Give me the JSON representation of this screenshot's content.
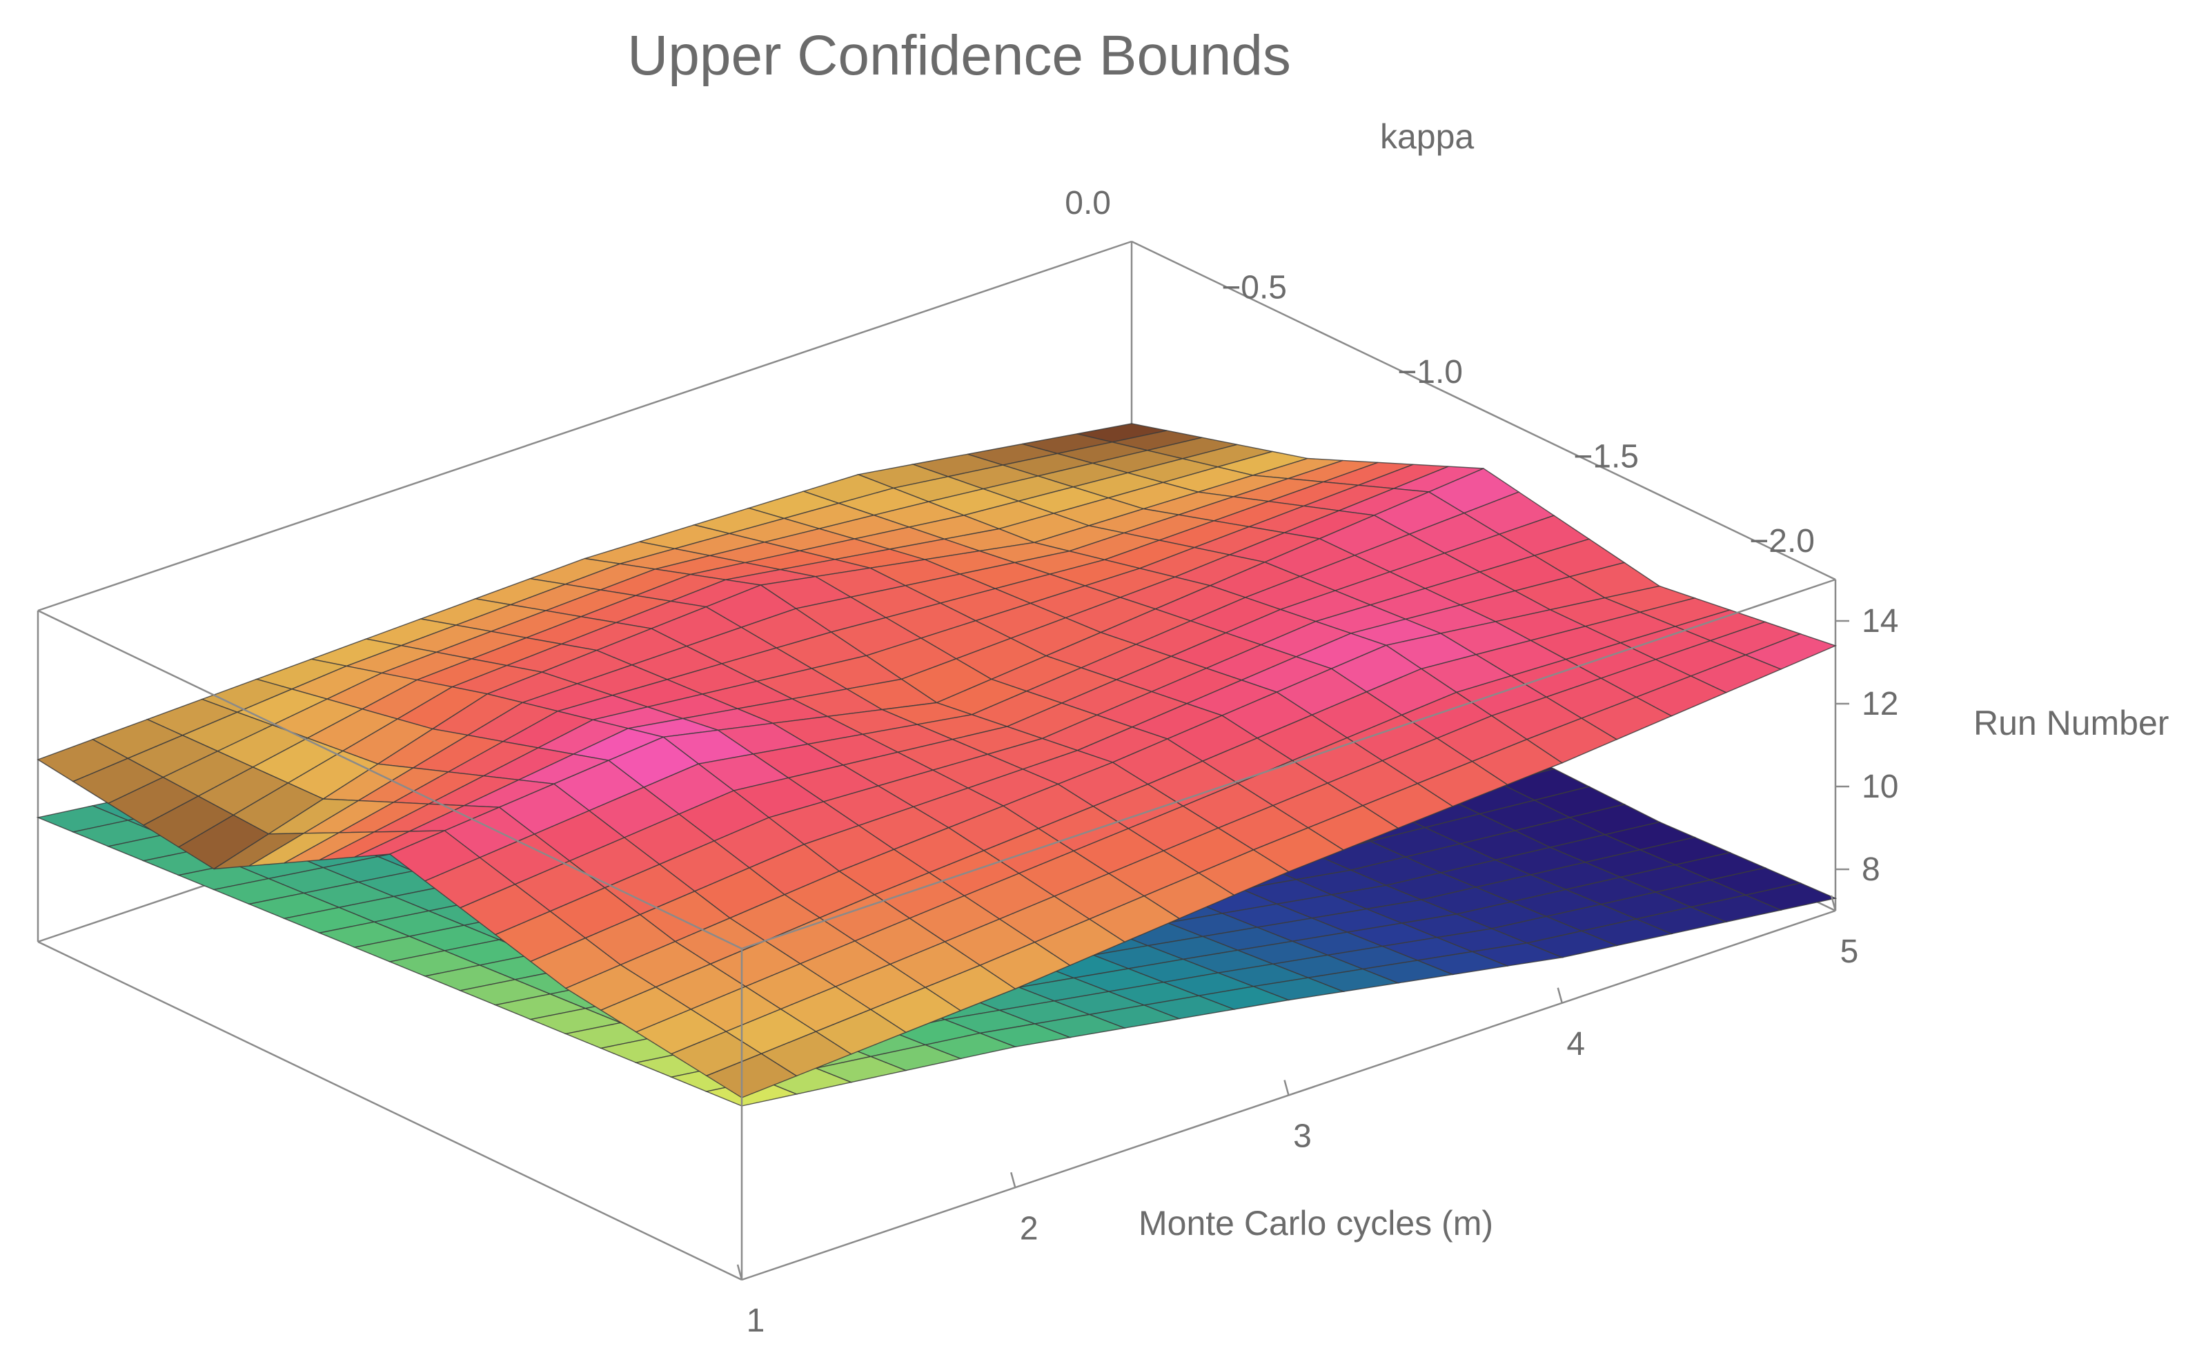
{
  "chart_data": {
    "type": "surface3d",
    "title": "Upper Confidence Bounds",
    "x_axis": {
      "label": "Monte Carlo cycles (m)",
      "ticks": [
        "1",
        "2",
        "3",
        "4",
        "5"
      ],
      "range": [
        1,
        5
      ]
    },
    "y_axis": {
      "label": "kappa",
      "ticks": [
        "−2.0",
        "−1.5",
        "−1.0",
        "−0.5",
        "0.0"
      ],
      "range": [
        -2.0,
        0.0
      ]
    },
    "z_axis": {
      "label": "Run Number",
      "ticks": [
        "8",
        "10",
        "12",
        "14"
      ],
      "range": [
        7,
        15
      ]
    },
    "x_values": [
      1,
      2,
      3,
      4,
      5
    ],
    "y_values": [
      -2.0,
      -1.5,
      -1.0,
      -0.5,
      0.0
    ],
    "series": [
      {
        "colormap": "sunset",
        "z": [
          [
            11.4,
            12.0,
            13.2,
            10.8,
            11.4
          ],
          [
            11.8,
            12.6,
            13.8,
            12.8,
            11.6
          ],
          [
            12.4,
            13.0,
            12.4,
            13.2,
            11.8
          ],
          [
            12.8,
            13.6,
            13.0,
            12.0,
            11.6
          ],
          [
            13.4,
            12.8,
            13.6,
            11.8,
            10.6
          ]
        ]
      },
      {
        "colormap": "viridis",
        "z": [
          [
            11.2,
            10.9,
            10.6,
            10.3,
            10.0
          ],
          [
            10.4,
            10.0,
            9.7,
            9.4,
            9.2
          ],
          [
            9.3,
            8.9,
            8.6,
            8.4,
            8.4
          ],
          [
            8.1,
            7.8,
            7.6,
            7.7,
            8.1
          ],
          [
            7.3,
            7.1,
            7.2,
            7.6,
            8.3
          ]
        ]
      }
    ],
    "grid": false,
    "box": true
  }
}
